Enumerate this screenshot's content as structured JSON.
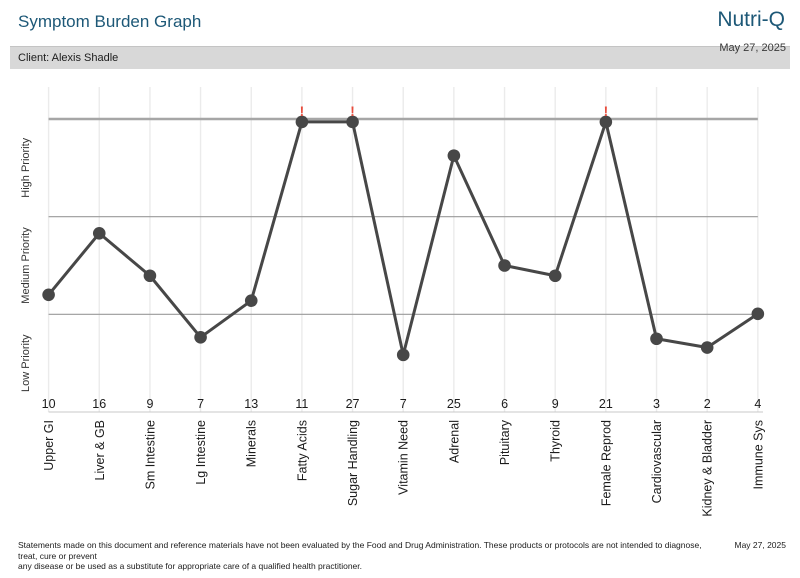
{
  "header": {
    "title": "Symptom Burden Graph",
    "brand": "Nutri-Q",
    "client_label": "Client: Alexis Shadle",
    "date": "May 27, 2025"
  },
  "chart_data": {
    "type": "line",
    "title": "Symptom Burden Graph",
    "y_axis_bands": [
      {
        "label": "Low Priority",
        "range_pct": [
          0,
          33.3
        ]
      },
      {
        "label": "Medium Priority",
        "range_pct": [
          33.3,
          66.7
        ]
      },
      {
        "label": "High Priority",
        "range_pct": [
          66.7,
          100
        ]
      }
    ],
    "y_scale_note": "level_pct = symptom burden as % of chart height; 100 = ceiling line (maxed out, flagged with !)",
    "grid": "vertical line per category; horizontal lines at 33.3%, 66.7% and 100%",
    "categories": [
      {
        "label": "Upper GI",
        "score": 10,
        "level_pct": 40,
        "alert": false
      },
      {
        "label": "Liver & GB",
        "score": 16,
        "level_pct": 61,
        "alert": false
      },
      {
        "label": "Sm Intestine",
        "score": 9,
        "level_pct": 46.5,
        "alert": false
      },
      {
        "label": "Lg Intestine",
        "score": 7,
        "level_pct": 25.5,
        "alert": false
      },
      {
        "label": "Minerals",
        "score": 13,
        "level_pct": 38,
        "alert": false
      },
      {
        "label": "Fatty Acids",
        "score": 11,
        "level_pct": 99,
        "alert": true
      },
      {
        "label": "Sugar Handling",
        "score": 27,
        "level_pct": 99,
        "alert": true
      },
      {
        "label": "Vitamin Need",
        "score": 7,
        "level_pct": 19.5,
        "alert": false
      },
      {
        "label": "Adrenal",
        "score": 25,
        "level_pct": 87.5,
        "alert": false
      },
      {
        "label": "Pituitary",
        "score": 6,
        "level_pct": 50,
        "alert": false
      },
      {
        "label": "Thyroid",
        "score": 9,
        "level_pct": 46.5,
        "alert": false
      },
      {
        "label": "Female Reprod",
        "score": 21,
        "level_pct": 99,
        "alert": true
      },
      {
        "label": "Cardiovascular",
        "score": 3,
        "level_pct": 25,
        "alert": false
      },
      {
        "label": "Kidney & Bladder",
        "score": 2,
        "level_pct": 22,
        "alert": false
      },
      {
        "label": "Immune Sys",
        "score": 4,
        "level_pct": 33.5,
        "alert": false
      }
    ],
    "alert_glyph": "!",
    "colors": {
      "accent": "#1d5877",
      "line": "#474747",
      "point": "#474747",
      "alert": "#e74c3c",
      "grid_vertical": "#ebebeb",
      "grid_horizontal": "#9a9a9a",
      "grid_top": "#a6a6a6",
      "axis": "#c8c8c8",
      "text": "#1b1b1b",
      "client_bar_bg": "#d8d8d8"
    }
  },
  "footer": {
    "disclaimer_line1": "Statements made on this document and reference materials have not been evaluated by the Food and Drug Administration. These products or protocols are not intended to diagnose, treat, cure or prevent",
    "disclaimer_line2": "any disease or be used as a substitute for appropriate care of a qualified health practitioner.",
    "date": "May 27, 2025"
  }
}
